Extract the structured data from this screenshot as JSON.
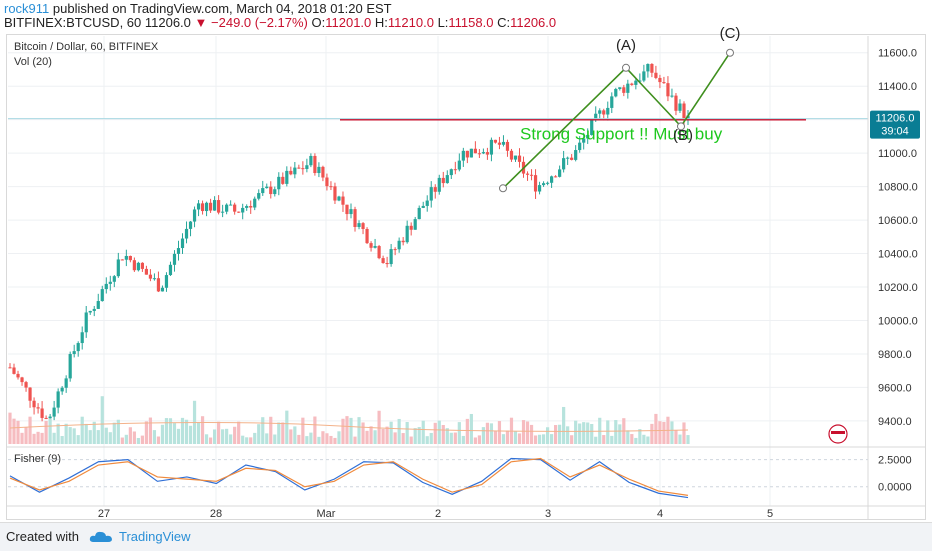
{
  "header": {
    "author": "rock911",
    "published": "published on TradingView.com, March 04, 2018 01:20 EST",
    "symbol_line": "BITFINEX:BTCUSD, 60",
    "last": "11206.0",
    "change": "−249.0 (−2.17%)",
    "o_label": "O:",
    "open": "11201.0",
    "h_label": "H:",
    "high": "11210.0",
    "l_label": "L:",
    "low": "11158.0",
    "c_label": "C:",
    "close": "11206.0"
  },
  "main_panel": {
    "title": "Bitcoin / Dollar, 60, BITFINEX",
    "vol_label": "Vol (20)"
  },
  "price_tag": {
    "price": "11206.0",
    "countdown": "39:04"
  },
  "fisher_panel": {
    "title": "Fisher (9)"
  },
  "footer": {
    "created_with": "Created with",
    "brand": "TradingView"
  },
  "colors": {
    "up": "#26a69a",
    "down": "#ef5350",
    "wave": "#3f8f1e",
    "support": "#c8102e",
    "annotation": "#1ec81e"
  },
  "chart_data": [
    {
      "type": "candlestick",
      "title": "Bitcoin / Dollar, 60, BITFINEX",
      "ylim": [
        9250,
        11700
      ],
      "y_ticks": [
        9400,
        9600,
        9800,
        10000,
        10200,
        10400,
        10600,
        10800,
        11000,
        11200,
        11400,
        11600
      ],
      "y_tick_labels": [
        "9400.0",
        "9600.0",
        "9800.0",
        "10000.0",
        "10200.0",
        "10400.0",
        "10600.0",
        "10800.0",
        "11000.0",
        "11200.0",
        "11400.0",
        "11600.0"
      ],
      "x_ticks": [
        "27",
        "28",
        "Mar",
        "2",
        "3",
        "4",
        "5"
      ],
      "ohlc_trend": [
        [
          9720,
          9720
        ],
        [
          9400,
          9500
        ],
        [
          10000,
          10100
        ],
        [
          10400,
          10350
        ],
        [
          10200,
          10200
        ],
        [
          10700,
          10750
        ],
        [
          10650,
          10650
        ],
        [
          10800,
          10900
        ],
        [
          10950,
          11000
        ],
        [
          10650,
          10400
        ],
        [
          10350,
          10450
        ],
        [
          10700,
          10800
        ],
        [
          11000,
          11100
        ],
        [
          11050,
          11000
        ],
        [
          10800,
          10850
        ],
        [
          11000,
          11050
        ],
        [
          11350,
          11400
        ],
        [
          11500,
          11450
        ],
        [
          11200,
          11180
        ]
      ],
      "support_level": 11200,
      "support_label": "Strong Support !! Must buy",
      "waves": [
        {
          "label": "(A)",
          "price": 11510
        },
        {
          "label": "(B)",
          "price": 11160
        },
        {
          "label": "(C)",
          "price": 11600
        }
      ],
      "wave_start_price": 10790,
      "grid": true
    },
    {
      "type": "line",
      "title": "Fisher (9)",
      "ylim": [
        -1.5,
        3.2
      ],
      "y_ticks": [
        2.5,
        0
      ],
      "y_tick_labels": [
        "2.5000",
        "0.0000"
      ],
      "series": [
        {
          "values": [
            1.0,
            -0.5,
            0.8,
            2.3,
            2.5,
            0.5,
            0.9,
            0.3,
            2.0,
            1.4,
            -0.3,
            0.7,
            2.3,
            2.2,
            0.4,
            -0.7,
            0.5,
            2.6,
            2.5,
            0.6,
            2.3,
            0.4,
            -0.6,
            -1.0
          ]
        },
        {
          "values": [
            0.8,
            -0.3,
            0.5,
            2.0,
            2.3,
            0.9,
            0.7,
            0.5,
            1.7,
            1.5,
            0.0,
            0.5,
            2.0,
            2.3,
            0.7,
            -0.5,
            0.2,
            2.3,
            2.6,
            0.9,
            2.0,
            0.7,
            -0.4,
            -0.8
          ]
        }
      ],
      "grid": true
    }
  ]
}
